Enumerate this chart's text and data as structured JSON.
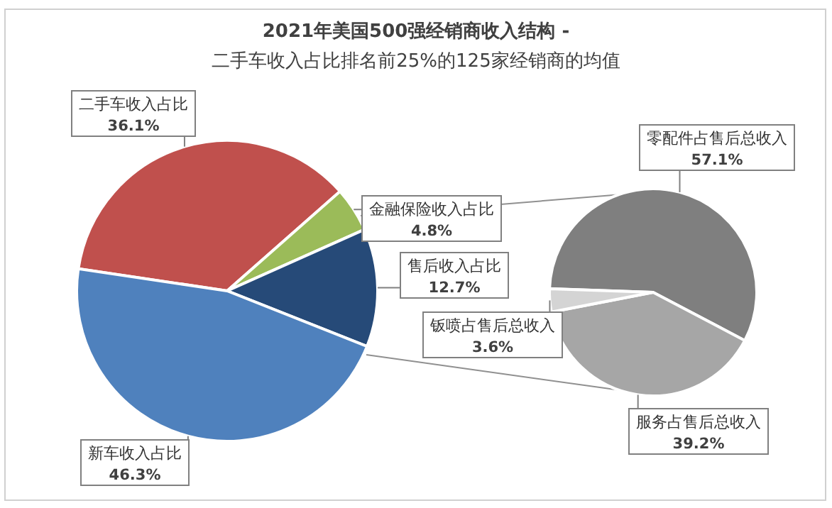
{
  "chart_data": [
    {
      "type": "pie",
      "title": "2021年美国500强经销商收入结构 -",
      "subtitle": "二手车收入占比排名前25%的125家经销商的均值",
      "categories": [
        "二手车收入占比",
        "金融保险收入占比",
        "售后收入占比",
        "新车收入占比"
      ],
      "values": [
        36.1,
        4.8,
        12.7,
        46.3
      ],
      "colors": [
        "#c0504d",
        "#9bbb59",
        "#264a78",
        "#4f81bd"
      ],
      "value_labels": [
        "36.1%",
        "4.8%",
        "12.7%",
        "46.3%"
      ],
      "legend": false
    },
    {
      "type": "pie",
      "categories": [
        "零配件占售后总收入",
        "服务占售后总收入",
        "钣喷占售后总收入"
      ],
      "values": [
        57.1,
        39.2,
        3.6
      ],
      "colors": [
        "#7f7f7f",
        "#a6a6a6",
        "#d4d4d4"
      ],
      "value_labels": [
        "57.1%",
        "39.2%",
        "3.6%"
      ],
      "legend": false
    }
  ]
}
